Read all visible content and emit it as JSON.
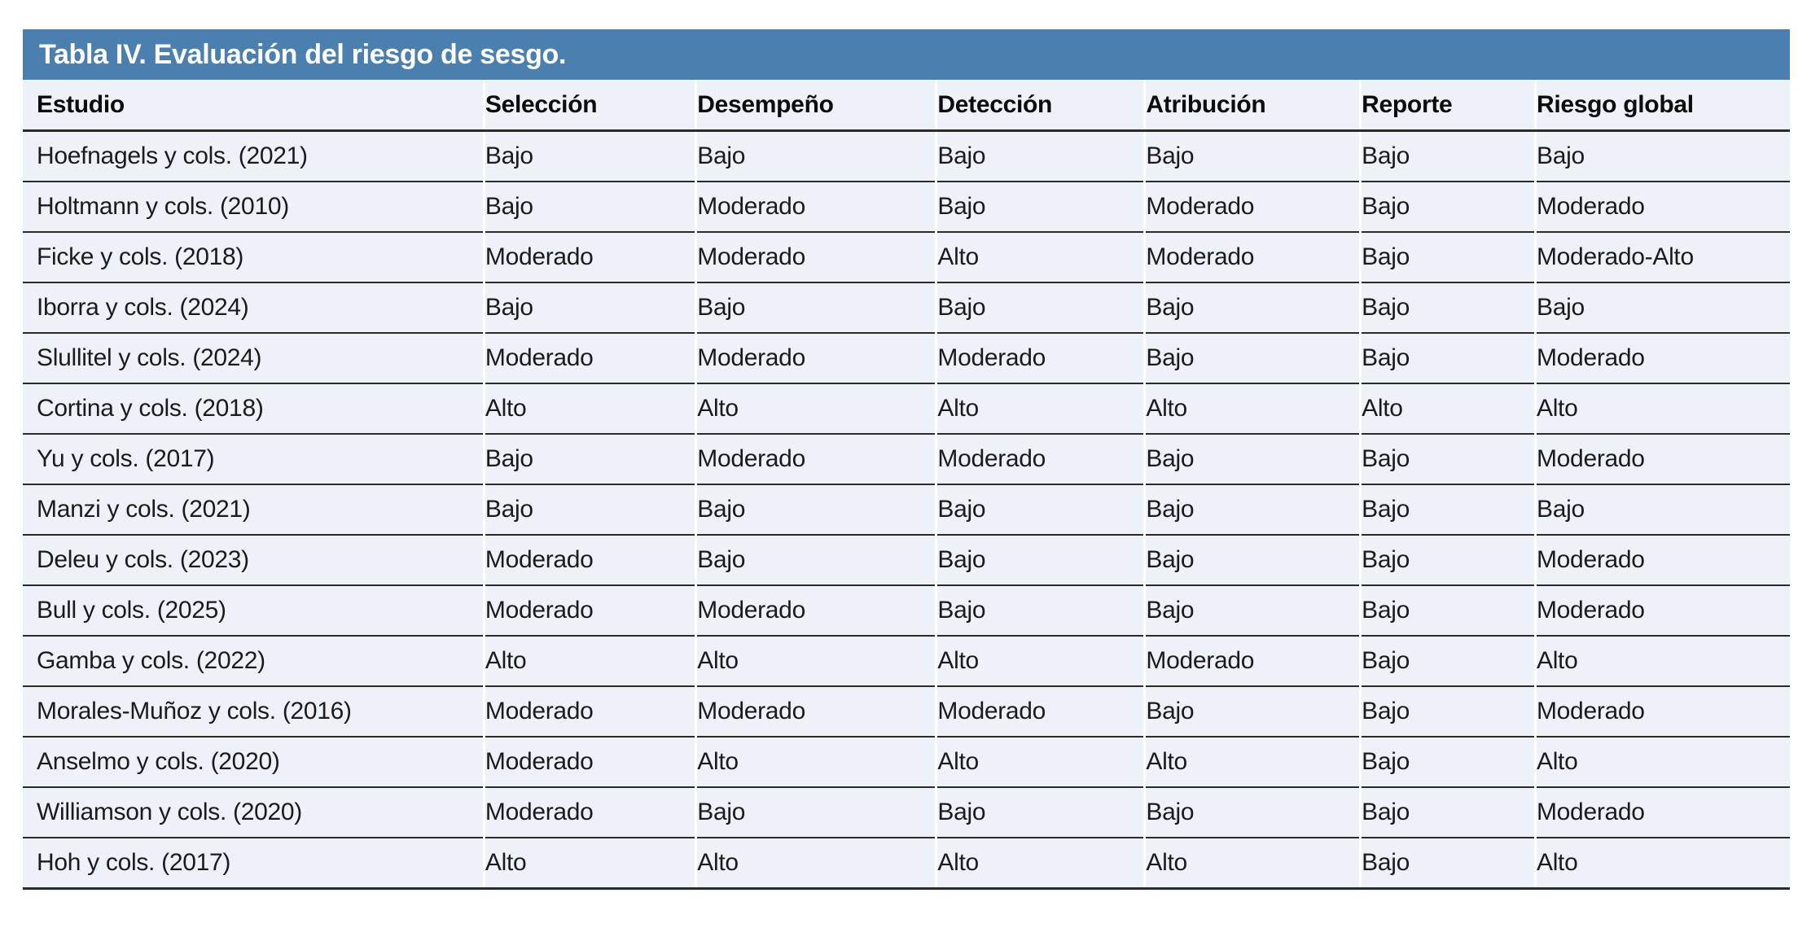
{
  "table": {
    "title": "Tabla IV. Evaluación del riesgo de sesgo.",
    "columns": [
      "Estudio",
      "Selección",
      "Desempeño",
      "Detección",
      "Atribución",
      "Reporte",
      "Riesgo global"
    ],
    "rows": [
      [
        "Hoefnagels y cols. (2021)",
        "Bajo",
        "Bajo",
        "Bajo",
        "Bajo",
        "Bajo",
        "Bajo"
      ],
      [
        "Holtmann y cols. (2010)",
        "Bajo",
        "Moderado",
        "Bajo",
        "Moderado",
        "Bajo",
        "Moderado"
      ],
      [
        "Ficke y cols. (2018)",
        "Moderado",
        "Moderado",
        "Alto",
        "Moderado",
        "Bajo",
        "Moderado-Alto"
      ],
      [
        "Iborra y cols. (2024)",
        "Bajo",
        "Bajo",
        "Bajo",
        "Bajo",
        "Bajo",
        "Bajo"
      ],
      [
        "Slullitel y cols. (2024)",
        "Moderado",
        "Moderado",
        "Moderado",
        "Bajo",
        "Bajo",
        "Moderado"
      ],
      [
        "Cortina y cols. (2018)",
        "Alto",
        "Alto",
        "Alto",
        "Alto",
        "Alto",
        "Alto"
      ],
      [
        "Yu y cols. (2017)",
        "Bajo",
        "Moderado",
        "Moderado",
        "Bajo",
        "Bajo",
        "Moderado"
      ],
      [
        "Manzi y cols. (2021)",
        "Bajo",
        "Bajo",
        "Bajo",
        "Bajo",
        "Bajo",
        "Bajo"
      ],
      [
        "Deleu y cols. (2023)",
        "Moderado",
        "Bajo",
        "Bajo",
        "Bajo",
        "Bajo",
        "Moderado"
      ],
      [
        "Bull y cols. (2025)",
        "Moderado",
        "Moderado",
        "Bajo",
        "Bajo",
        "Bajo",
        "Moderado"
      ],
      [
        "Gamba y cols. (2022)",
        "Alto",
        "Alto",
        "Alto",
        "Moderado",
        "Bajo",
        "Alto"
      ],
      [
        "Morales-Muñoz y cols. (2016)",
        "Moderado",
        "Moderado",
        "Moderado",
        "Bajo",
        "Bajo",
        "Moderado"
      ],
      [
        "Anselmo y cols. (2020)",
        "Moderado",
        "Alto",
        "Alto",
        "Alto",
        "Bajo",
        "Alto"
      ],
      [
        "Williamson y cols. (2020)",
        "Moderado",
        "Bajo",
        "Bajo",
        "Bajo",
        "Bajo",
        "Moderado"
      ],
      [
        "Hoh y cols. (2017)",
        "Alto",
        "Alto",
        "Alto",
        "Alto",
        "Bajo",
        "Alto"
      ]
    ],
    "colors": {
      "title_bar_bg": "#4b80ae",
      "title_text": "#ffffff",
      "row_bg": "#edf1f8",
      "separator": "#2a2a2a",
      "body_text": "#1b1b1b"
    }
  }
}
